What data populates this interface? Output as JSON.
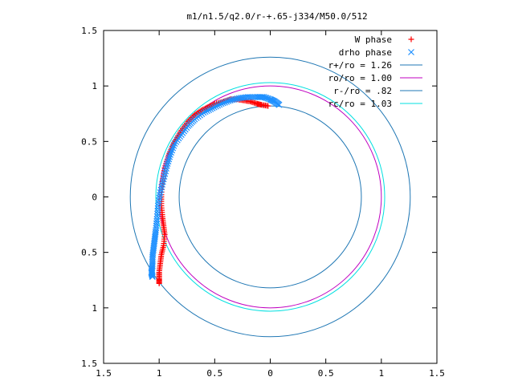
{
  "chart_data": {
    "type": "scatter",
    "title": "m1/n1.5/q2.0/r-+.65-j334/M50.0/512",
    "xlabel": "",
    "ylabel": "",
    "xlim": [
      1.5,
      -1.5
    ],
    "ylim": [
      -1.5,
      1.5
    ],
    "aspect": "equal",
    "grid": false,
    "legend_position": "top-right",
    "x_ticks": [
      {
        "value": 1.5,
        "label": "1.5"
      },
      {
        "value": 1.0,
        "label": "1"
      },
      {
        "value": 0.5,
        "label": "0.5"
      },
      {
        "value": 0.0,
        "label": "0"
      },
      {
        "value": -0.5,
        "label": "0.5"
      },
      {
        "value": -1.0,
        "label": "1"
      },
      {
        "value": -1.5,
        "label": "1.5"
      }
    ],
    "y_ticks": [
      {
        "value": 1.5,
        "label": "1.5"
      },
      {
        "value": 1.0,
        "label": "1"
      },
      {
        "value": 0.5,
        "label": "0.5"
      },
      {
        "value": 0.0,
        "label": "0"
      },
      {
        "value": -0.5,
        "label": "0.5"
      },
      {
        "value": -1.0,
        "label": "1"
      },
      {
        "value": -1.5,
        "label": "1.5"
      }
    ],
    "series": [
      {
        "name": "W phase",
        "kind": "points",
        "marker": "plus",
        "color": "#ff0000",
        "points": [
          [
            0.02,
            0.82
          ],
          [
            0.08,
            0.83
          ],
          [
            0.12,
            0.84
          ],
          [
            0.18,
            0.86
          ],
          [
            0.24,
            0.87
          ],
          [
            0.3,
            0.88
          ],
          [
            0.36,
            0.88
          ],
          [
            0.42,
            0.86
          ],
          [
            0.5,
            0.84
          ],
          [
            0.56,
            0.81
          ],
          [
            0.62,
            0.78
          ],
          [
            0.68,
            0.74
          ],
          [
            0.74,
            0.68
          ],
          [
            0.8,
            0.6
          ],
          [
            0.85,
            0.52
          ],
          [
            0.89,
            0.44
          ],
          [
            0.92,
            0.36
          ],
          [
            0.95,
            0.26
          ],
          [
            0.97,
            0.14
          ],
          [
            0.98,
            0.02
          ],
          [
            0.98,
            -0.08
          ],
          [
            0.97,
            -0.18
          ],
          [
            0.96,
            -0.26
          ],
          [
            0.95,
            -0.34
          ],
          [
            0.96,
            -0.44
          ],
          [
            0.98,
            -0.52
          ],
          [
            0.99,
            -0.6
          ],
          [
            1.0,
            -0.68
          ],
          [
            1.0,
            -0.74
          ],
          [
            1.0,
            -0.78
          ]
        ]
      },
      {
        "name": "drho phase",
        "kind": "points",
        "marker": "cross",
        "color": "#1e90ff",
        "points": [
          [
            -0.08,
            0.83
          ],
          [
            -0.04,
            0.86
          ],
          [
            0.0,
            0.88
          ],
          [
            0.06,
            0.9
          ],
          [
            0.12,
            0.9
          ],
          [
            0.2,
            0.9
          ],
          [
            0.28,
            0.89
          ],
          [
            0.36,
            0.87
          ],
          [
            0.44,
            0.84
          ],
          [
            0.52,
            0.8
          ],
          [
            0.6,
            0.76
          ],
          [
            0.68,
            0.7
          ],
          [
            0.74,
            0.64
          ],
          [
            0.8,
            0.56
          ],
          [
            0.86,
            0.48
          ],
          [
            0.9,
            0.38
          ],
          [
            0.93,
            0.28
          ],
          [
            0.96,
            0.16
          ],
          [
            0.99,
            0.04
          ],
          [
            1.01,
            -0.08
          ],
          [
            1.02,
            -0.2
          ],
          [
            1.03,
            -0.3
          ],
          [
            1.04,
            -0.38
          ],
          [
            1.05,
            -0.46
          ],
          [
            1.06,
            -0.54
          ],
          [
            1.06,
            -0.62
          ],
          [
            1.07,
            -0.68
          ],
          [
            1.06,
            -0.72
          ]
        ]
      },
      {
        "name": "r+/ro = 1.26",
        "kind": "circle",
        "radius": 1.26,
        "color": "#1f77b4"
      },
      {
        "name": "ro/ro = 1.00",
        "kind": "circle",
        "radius": 1.0,
        "color": "#c000c0"
      },
      {
        "name": "r-/ro = .82",
        "kind": "circle",
        "radius": 0.82,
        "color": "#1f77b4"
      },
      {
        "name": "rc/ro = 1.03",
        "kind": "circle",
        "radius": 1.03,
        "color": "#00e0e0"
      }
    ]
  }
}
